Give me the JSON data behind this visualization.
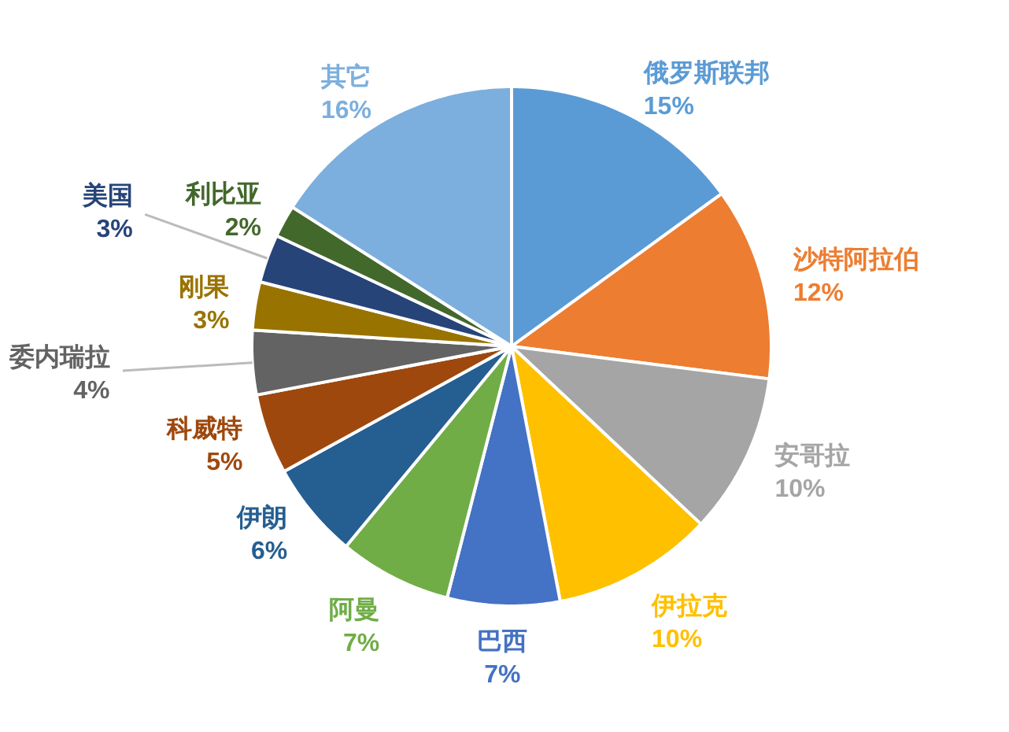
{
  "chart_data": {
    "type": "pie",
    "categories": [
      "俄罗斯联邦",
      "沙特阿拉伯",
      "安哥拉",
      "伊拉克",
      "巴西",
      "阿曼",
      "伊朗",
      "科威特",
      "委内瑞拉",
      "刚果",
      "美国",
      "利比亚",
      "其它"
    ],
    "values": [
      15,
      12,
      10,
      10,
      7,
      7,
      6,
      5,
      4,
      3,
      3,
      2,
      16
    ],
    "value_labels": [
      "15%",
      "12%",
      "10%",
      "10%",
      "7%",
      "7%",
      "6%",
      "5%",
      "4%",
      "3%",
      "3%",
      "2%",
      "16%"
    ],
    "colors": [
      "#5b9bd5",
      "#ed7d31",
      "#a5a5a5",
      "#ffc000",
      "#4472c4",
      "#70ad47",
      "#255e91",
      "#9e480e",
      "#636363",
      "#997300",
      "#264478",
      "#43682b",
      "#7cafdd"
    ]
  }
}
